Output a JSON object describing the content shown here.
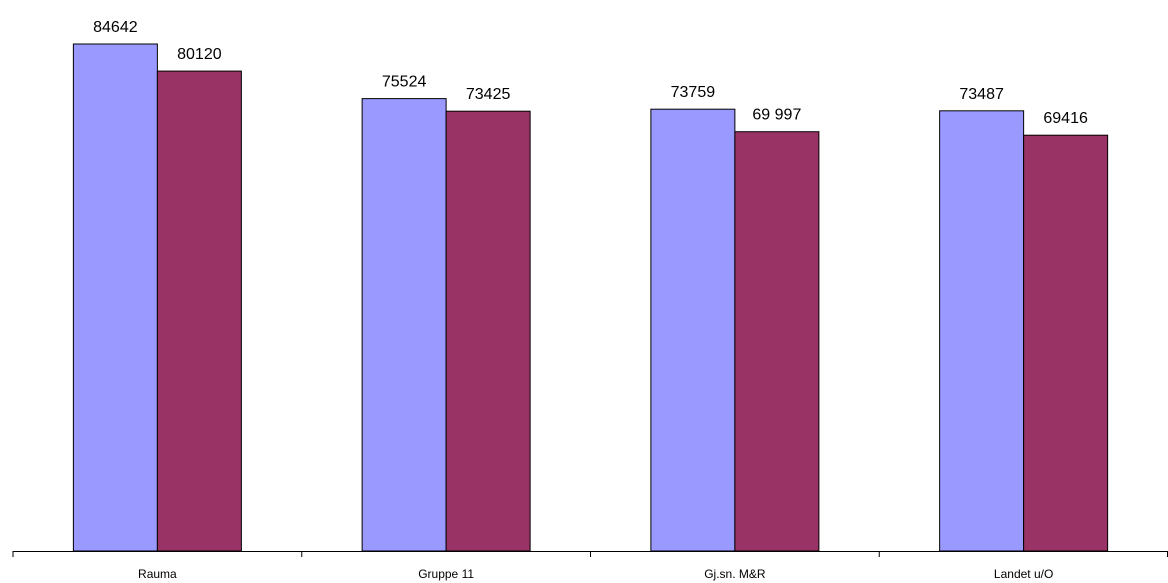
{
  "chart_data": {
    "type": "bar",
    "categories": [
      "Rauma",
      "Gruppe 11",
      "Gj.sn. M&R",
      "Landet u/O"
    ],
    "series": [
      {
        "values": [
          84642,
          75524,
          73759,
          73487
        ],
        "labels": [
          "84642",
          "75524",
          "73759",
          "73487"
        ],
        "color": "#9999FF"
      },
      {
        "values": [
          80120,
          73425,
          69997,
          69416
        ],
        "labels": [
          "80120",
          "73425",
          "69 997",
          "69416"
        ],
        "color": "#993366"
      }
    ],
    "title": "",
    "xlabel": "",
    "ylabel": "",
    "ylim": [
      0,
      90000
    ],
    "grid": false,
    "legend": "none"
  }
}
